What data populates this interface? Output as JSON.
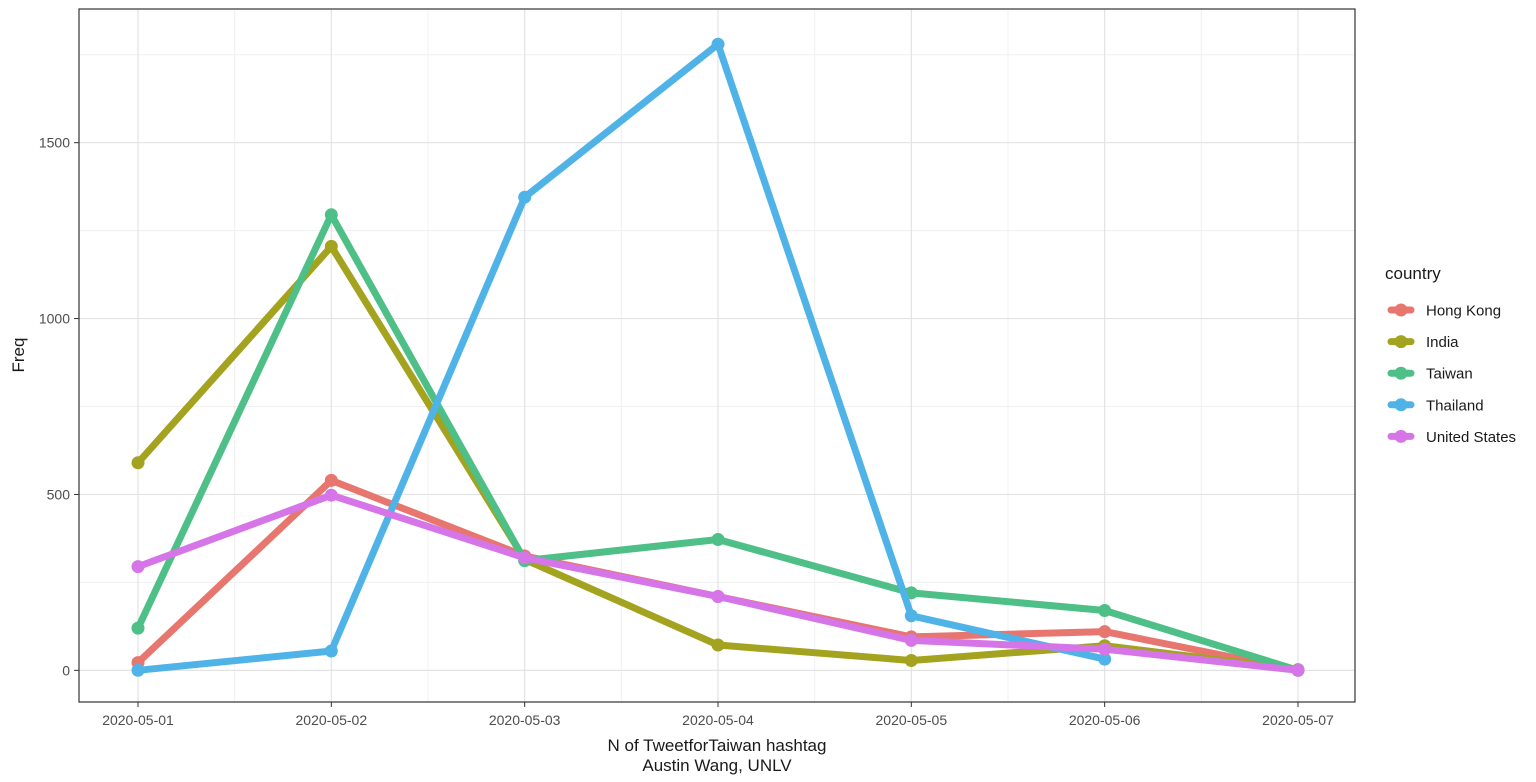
{
  "chart_data": {
    "type": "line",
    "x": [
      "2020-05-01",
      "2020-05-02",
      "2020-05-03",
      "2020-05-04",
      "2020-05-05",
      "2020-05-06",
      "2020-05-07"
    ],
    "xlabel": "N of TweetforTaiwan hashtag",
    "xlabel_line2": "Austin Wang, UNLV",
    "ylabel": "Freq",
    "ylim": [
      -90,
      1880
    ],
    "yticks": [
      0,
      500,
      1000,
      1500
    ],
    "grid": true,
    "legend_title": "country",
    "legend_position": "right",
    "series": [
      {
        "name": "Hong Kong",
        "color": "#E7766F",
        "values": [
          22,
          540,
          325,
          210,
          95,
          110,
          0
        ]
      },
      {
        "name": "India",
        "color": "#A3A31F",
        "values": [
          590,
          1205,
          315,
          72,
          28,
          70,
          2
        ]
      },
      {
        "name": "Taiwan",
        "color": "#4DBF87",
        "values": [
          120,
          1295,
          312,
          372,
          220,
          170,
          0
        ]
      },
      {
        "name": "Thailand",
        "color": "#4FB3E8",
        "values": [
          0,
          55,
          1345,
          1780,
          155,
          32,
          null
        ]
      },
      {
        "name": "United States",
        "color": "#D575E8",
        "values": [
          295,
          498,
          320,
          210,
          85,
          60,
          0
        ]
      }
    ]
  }
}
